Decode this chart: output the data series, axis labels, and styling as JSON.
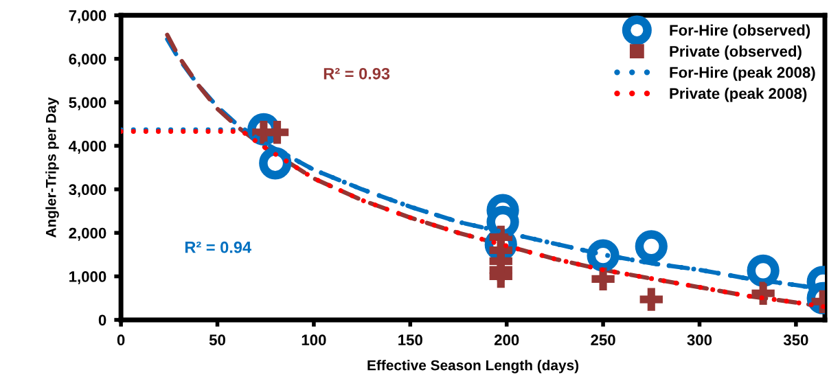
{
  "chart_data": {
    "type": "scatter",
    "xlabel": "Effective Season Length (days)",
    "ylabel": "Angler-Trips per Day",
    "xlim": [
      0,
      365
    ],
    "xticks": [
      0,
      50,
      100,
      150,
      200,
      250,
      300,
      350
    ],
    "ylim": [
      0,
      7000
    ],
    "yticks": [
      0,
      {
        "value": 1000,
        "label": "1,000"
      },
      {
        "value": 2000,
        "label": "2,000"
      },
      {
        "value": 3000,
        "label": "3,000"
      },
      {
        "value": 4000,
        "label": "4,000"
      },
      {
        "value": 5000,
        "label": "5,000"
      },
      {
        "value": 6000,
        "label": "6,000"
      },
      {
        "value": 7000,
        "label": "7,000"
      }
    ],
    "grid": false,
    "legend": "top right",
    "annotations": [
      "R² = 0.93",
      "R² = 0.94"
    ],
    "series": [
      {
        "type": "line",
        "line_style": "dashed",
        "marker": "none",
        "color": "#0070c0",
        "x": [
          24,
          30,
          40,
          50,
          60,
          75,
          100,
          125,
          150,
          175,
          200,
          225,
          250,
          275,
          300,
          325,
          350,
          365
        ],
        "values": [
          6450,
          6000,
          5400,
          4900,
          4500,
          4050,
          3450,
          3000,
          2600,
          2250,
          2000,
          1750,
          1500,
          1300,
          1150,
          950,
          800,
          700
        ]
      },
      {
        "type": "line",
        "line_style": "dotted",
        "marker": "none",
        "name": "For-Hire (peak 2008)",
        "color": "#0070c0",
        "x": [
          0,
          25,
          50,
          64,
          75,
          100,
          125,
          150,
          175,
          200,
          225,
          250,
          275,
          300,
          325,
          350,
          365
        ],
        "values": [
          4370,
          4370,
          4370,
          4370,
          4050,
          3450,
          3000,
          2600,
          2250,
          2000,
          1750,
          1500,
          1300,
          1150,
          950,
          800,
          700
        ]
      },
      {
        "type": "line",
        "line_style": "dotted",
        "marker": "none",
        "name": "Private (peak 2008)",
        "color": "#ff0000",
        "x": [
          0,
          25,
          50,
          63,
          75,
          100,
          125,
          150,
          175,
          200,
          225,
          250,
          275,
          300,
          325,
          350,
          365
        ],
        "values": [
          4330,
          4330,
          4330,
          4330,
          3950,
          3250,
          2750,
          2350,
          2000,
          1700,
          1400,
          1150,
          950,
          750,
          550,
          400,
          300
        ]
      },
      {
        "type": "line",
        "line_style": "dashed",
        "marker": "none",
        "color": "#943634",
        "x": [
          24,
          30,
          40,
          50,
          60,
          75,
          100,
          125,
          150,
          175,
          200,
          225,
          250,
          275,
          300,
          325,
          350,
          365
        ],
        "values": [
          6550,
          6050,
          5400,
          4850,
          4450,
          3950,
          3250,
          2750,
          2350,
          2000,
          1700,
          1400,
          1150,
          950,
          750,
          550,
          400,
          300
        ]
      },
      {
        "marker": "circle",
        "name": "For-Hire (observed)",
        "color": "#0070c0",
        "x": [
          74,
          80,
          198,
          198,
          197,
          250,
          275,
          333,
          364,
          364
        ],
        "values": [
          4380,
          3600,
          2520,
          2250,
          1730,
          1480,
          1690,
          1130,
          870,
          500
        ]
      },
      {
        "marker": "cross",
        "name": "Private (observed)",
        "color": "#943634",
        "x": [
          74,
          81,
          197,
          197,
          197,
          197,
          197,
          250,
          275,
          333,
          364
        ],
        "values": [
          4310,
          4310,
          1900,
          1600,
          1350,
          1150,
          1000,
          940,
          470,
          610,
          420
        ]
      }
    ]
  }
}
